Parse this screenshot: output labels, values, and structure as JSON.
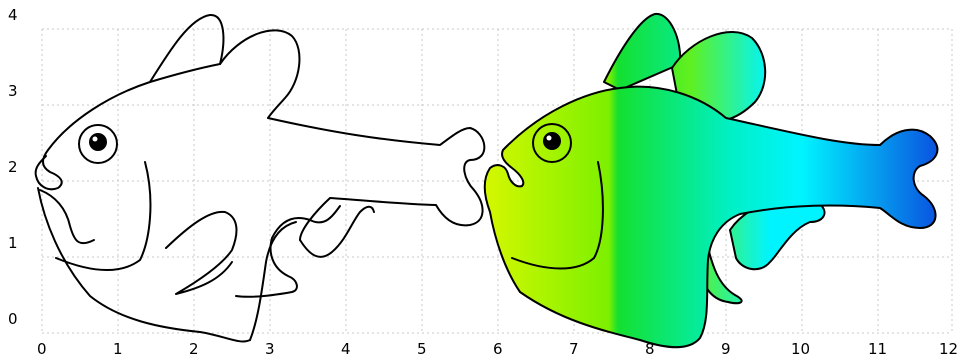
{
  "axes": {
    "x_ticks": [
      "0",
      "1",
      "2",
      "3",
      "4",
      "5",
      "6",
      "7",
      "8",
      "9",
      "10",
      "11",
      "12"
    ],
    "y_ticks": [
      "0",
      "1",
      "2",
      "3",
      "4"
    ],
    "grid": true
  },
  "figures": [
    {
      "name": "outline-fish",
      "style": "outline only, no fill"
    },
    {
      "name": "gradient-fish",
      "style": "filled with horizontal gradient"
    }
  ],
  "colors": {
    "gradient_stops": [
      "#d8f800",
      "#7cf000",
      "#14e030",
      "#00f0c8",
      "#00f4ff",
      "#0a50e0"
    ],
    "outline": "#000000",
    "eye": "#000000",
    "grid": "#c8c8c8"
  }
}
